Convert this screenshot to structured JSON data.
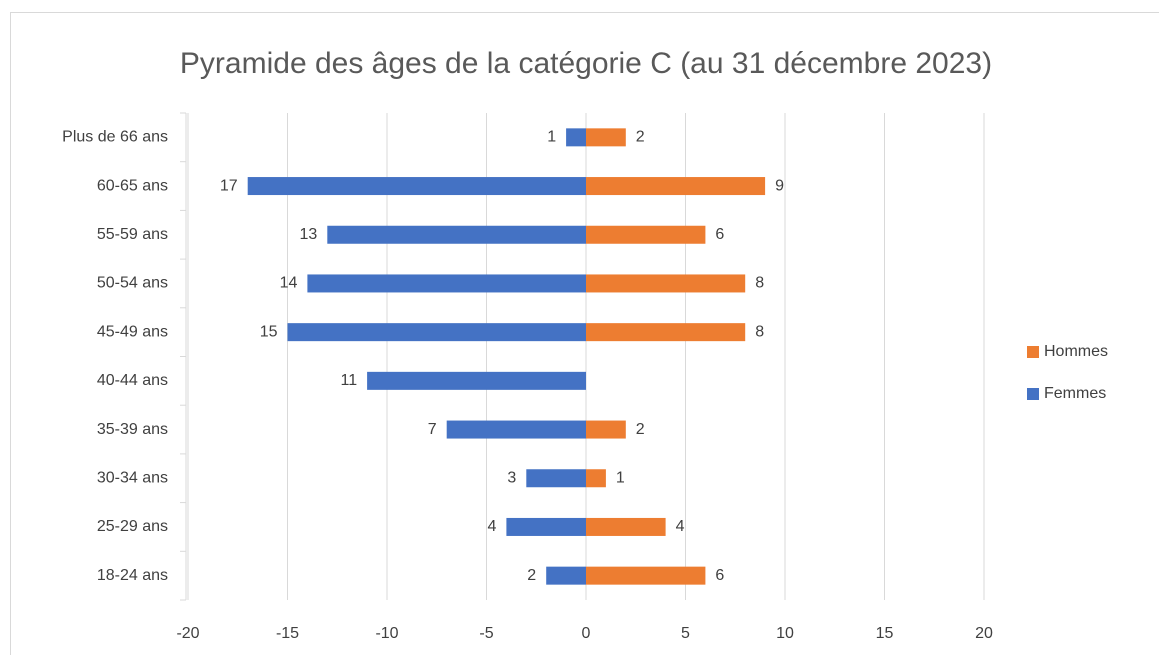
{
  "chart_data": {
    "type": "bar",
    "orientation": "horizontal",
    "title": "Pyramide des âges de la catégorie C (au 31 décembre 2023)",
    "categories": [
      "Plus de 66 ans",
      "60-65 ans",
      "55-59 ans",
      "50-54 ans",
      "45-49 ans",
      "40-44 ans",
      "35-39 ans",
      "30-34 ans",
      "25-29 ans",
      "18-24 ans"
    ],
    "series": [
      {
        "name": "Femmes",
        "color": "#4472c4",
        "values": [
          -1,
          -17,
          -13,
          -14,
          -15,
          -11,
          -7,
          -3,
          -4,
          -2
        ],
        "value_labels": [
          "1",
          "17",
          "13",
          "14",
          "15",
          "11",
          "7",
          "3",
          "4",
          "2"
        ]
      },
      {
        "name": "Hommes",
        "color": "#ed7d31",
        "values": [
          2,
          9,
          6,
          8,
          8,
          null,
          2,
          1,
          4,
          6
        ],
        "value_labels": [
          "2",
          "9",
          "6",
          "8",
          "8",
          null,
          "2",
          "1",
          "4",
          "6"
        ]
      }
    ],
    "xlim": [
      -20,
      20
    ],
    "xticks": [
      -20,
      -15,
      -10,
      -5,
      0,
      5,
      10,
      15,
      20
    ],
    "grid": true,
    "legend": "right"
  }
}
